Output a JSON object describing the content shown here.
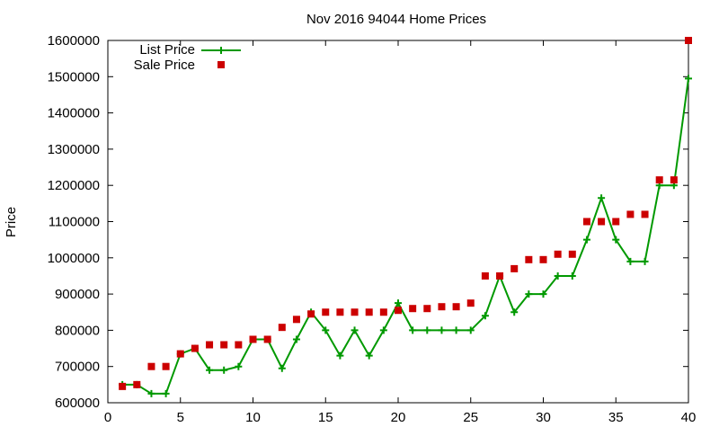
{
  "chart_data": {
    "type": "line",
    "title": "Nov 2016 94044 Home Prices",
    "xlabel": "",
    "ylabel": "Price",
    "xlim": [
      0,
      40
    ],
    "ylim": [
      600000,
      1600000
    ],
    "x_ticks": [
      0,
      5,
      10,
      15,
      20,
      25,
      30,
      35,
      40
    ],
    "y_ticks": [
      600000,
      700000,
      800000,
      900000,
      1000000,
      1100000,
      1200000,
      1300000,
      1400000,
      1500000,
      1600000
    ],
    "grid": false,
    "legend_position": "top-left",
    "x": [
      1,
      2,
      3,
      4,
      5,
      6,
      7,
      8,
      9,
      10,
      11,
      12,
      13,
      14,
      15,
      16,
      17,
      18,
      19,
      20,
      21,
      22,
      23,
      24,
      25,
      26,
      27,
      28,
      29,
      30,
      31,
      32,
      33,
      34,
      35,
      36,
      37,
      38,
      39,
      40
    ],
    "series": [
      {
        "name": "List Price",
        "style": "line+cross",
        "color": "#009900",
        "values": [
          650000,
          650000,
          625000,
          625000,
          735000,
          750000,
          690000,
          690000,
          700000,
          775000,
          775000,
          695000,
          775000,
          850000,
          800000,
          730000,
          800000,
          730000,
          800000,
          875000,
          800000,
          800000,
          800000,
          800000,
          800000,
          840000,
          950000,
          850000,
          900000,
          900000,
          950000,
          950000,
          1050000,
          1165000,
          1050000,
          990000,
          990000,
          1200000,
          1200000,
          1495000
        ]
      },
      {
        "name": "Sale Price",
        "style": "square",
        "color": "#cc0000",
        "values": [
          645000,
          650000,
          700000,
          700000,
          735000,
          750000,
          760000,
          760000,
          760000,
          775000,
          775000,
          808000,
          830000,
          845000,
          850000,
          850000,
          850000,
          850000,
          850000,
          855000,
          860000,
          860000,
          865000,
          865000,
          875000,
          950000,
          950000,
          970000,
          995000,
          995000,
          1010000,
          1010000,
          1100000,
          1100000,
          1100000,
          1120000,
          1120000,
          1215000,
          1215000,
          1600000
        ]
      }
    ]
  }
}
